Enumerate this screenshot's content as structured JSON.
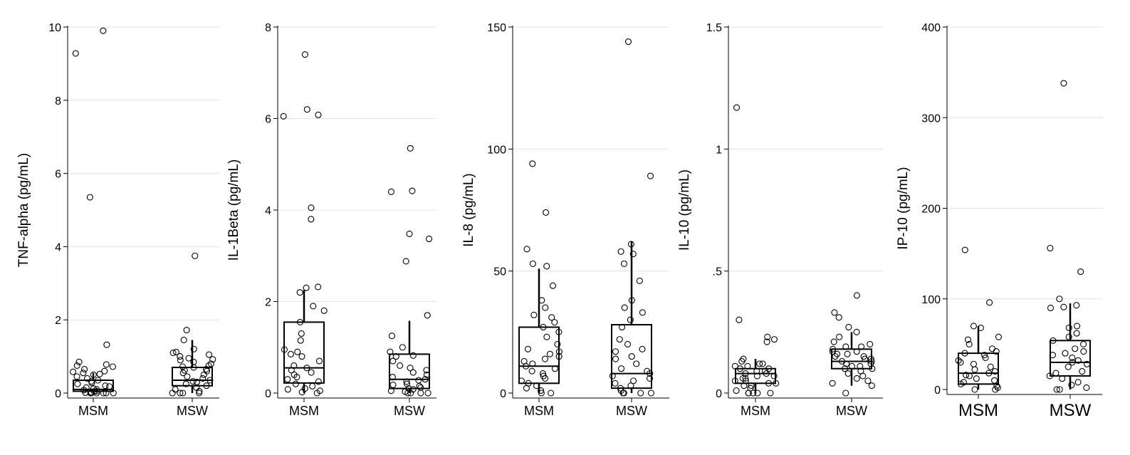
{
  "chart_data": [
    {
      "type": "box",
      "ylabel": "TNF-alpha (pg/mL)",
      "categories": [
        "MSM",
        "MSW"
      ],
      "ylim": [
        0,
        10
      ],
      "yticks": [
        0,
        2,
        4,
        6,
        8,
        10
      ],
      "ytick_labels": [
        "0",
        "2",
        "4",
        "6",
        "8",
        "10"
      ],
      "grid": true,
      "boxes": [
        {
          "whisker_low": 0,
          "q1": 0.05,
          "median": 0.1,
          "q3": 0.35,
          "whisker_high": 0.55
        },
        {
          "whisker_low": 0,
          "q1": 0.2,
          "median": 0.35,
          "q3": 0.7,
          "whisker_high": 1.45
        }
      ],
      "points": [
        [
          9.9,
          9.28,
          5.35,
          1.32,
          0.85,
          0.78,
          0.75,
          0.72,
          0.65,
          0.6,
          0.58,
          0.55,
          0.52,
          0.5,
          0.45,
          0.4,
          0.35,
          0.32,
          0.28,
          0.25,
          0.2,
          0.18,
          0.15,
          0.12,
          0.1,
          0.08,
          0.05,
          0.04,
          0.02,
          0.01,
          0,
          0,
          0,
          0,
          0,
          0
        ],
        [
          3.75,
          1.72,
          1.45,
          1.2,
          1.12,
          1.1,
          1.05,
          1.0,
          0.95,
          0.92,
          0.9,
          0.85,
          0.8,
          0.75,
          0.72,
          0.7,
          0.65,
          0.62,
          0.6,
          0.55,
          0.5,
          0.45,
          0.4,
          0.35,
          0.32,
          0.3,
          0.25,
          0.2,
          0.15,
          0.1,
          0.05,
          0,
          0,
          0,
          0
        ]
      ]
    },
    {
      "type": "box",
      "ylabel": "IL-1Beta (pg/mL)",
      "categories": [
        "MSM",
        "MSW"
      ],
      "ylim": [
        0,
        8
      ],
      "yticks": [
        0,
        2,
        4,
        6,
        8
      ],
      "ytick_labels": [
        "0",
        "2",
        "4",
        "6",
        "8"
      ],
      "grid": true,
      "boxes": [
        {
          "whisker_low": 0,
          "q1": 0.22,
          "median": 0.55,
          "q3": 1.55,
          "whisker_high": 2.25
        },
        {
          "whisker_low": 0,
          "q1": 0.1,
          "median": 0.3,
          "q3": 0.85,
          "whisker_high": 1.58
        }
      ],
      "points": [
        [
          7.4,
          6.2,
          6.08,
          6.05,
          4.05,
          3.8,
          2.32,
          2.3,
          2.2,
          1.9,
          1.8,
          1.55,
          1.3,
          1.15,
          0.95,
          0.9,
          0.85,
          0.8,
          0.7,
          0.6,
          0.55,
          0.5,
          0.45,
          0.4,
          0.35,
          0.3,
          0.25,
          0.2,
          0.15,
          0.1,
          0.08,
          0.05,
          0.02,
          0
        ],
        [
          5.35,
          4.42,
          4.4,
          3.48,
          3.37,
          2.88,
          1.7,
          1.25,
          1.0,
          0.9,
          0.82,
          0.8,
          0.7,
          0.6,
          0.55,
          0.5,
          0.45,
          0.4,
          0.35,
          0.3,
          0.28,
          0.25,
          0.2,
          0.18,
          0.15,
          0.12,
          0.1,
          0.08,
          0.05,
          0.03,
          0,
          0,
          0,
          0
        ]
      ]
    },
    {
      "type": "box",
      "ylabel": "IL-8 (pg/mL)",
      "categories": [
        "MSM",
        "MSW"
      ],
      "ylim": [
        0,
        150
      ],
      "yticks": [
        0,
        50,
        100,
        150
      ],
      "ytick_labels": [
        "0",
        "50",
        "100",
        "150"
      ],
      "grid": true,
      "boxes": [
        {
          "whisker_low": 0,
          "q1": 4,
          "median": 11,
          "q3": 27,
          "whisker_high": 51
        },
        {
          "whisker_low": 0,
          "q1": 2,
          "median": 8,
          "q3": 28,
          "whisker_high": 62
        }
      ],
      "points": [
        [
          94,
          74,
          59,
          53,
          52,
          44,
          38,
          35,
          32,
          31,
          29,
          27,
          25,
          23,
          20,
          18,
          17,
          16,
          15,
          14,
          13,
          12,
          11,
          10,
          9,
          8,
          7,
          6,
          5,
          4,
          3,
          2,
          1,
          0,
          0
        ],
        [
          144,
          89,
          61,
          58,
          57,
          53,
          46,
          38,
          35,
          33,
          30,
          27,
          22,
          20,
          18,
          17,
          15,
          14,
          12,
          10,
          9,
          8,
          7,
          6,
          5,
          4,
          3,
          2,
          1,
          0,
          0,
          0,
          0
        ]
      ]
    },
    {
      "type": "box",
      "ylabel": "IL-10 (pg/mL)",
      "categories": [
        "MSM",
        "MSW"
      ],
      "ylim": [
        0,
        1.5
      ],
      "yticks": [
        0,
        0.5,
        1,
        1.5
      ],
      "ytick_labels": [
        "0",
        ".5",
        "1",
        "1.5"
      ],
      "grid": true,
      "boxes": [
        {
          "whisker_low": 0,
          "q1": 0.04,
          "median": 0.08,
          "q3": 0.1,
          "whisker_high": 0.14
        },
        {
          "whisker_low": 0.03,
          "q1": 0.1,
          "median": 0.13,
          "q3": 0.18,
          "whisker_high": 0.25
        }
      ],
      "points": [
        [
          1.17,
          0.3,
          0.23,
          0.22,
          0.21,
          0.14,
          0.13,
          0.12,
          0.12,
          0.11,
          0.11,
          0.1,
          0.1,
          0.09,
          0.09,
          0.08,
          0.08,
          0.07,
          0.07,
          0.06,
          0.06,
          0.05,
          0.05,
          0.04,
          0.04,
          0.03,
          0.03,
          0.02,
          0.01,
          0,
          0,
          0,
          0,
          0
        ],
        [
          0.4,
          0.33,
          0.31,
          0.27,
          0.25,
          0.23,
          0.21,
          0.2,
          0.19,
          0.19,
          0.18,
          0.17,
          0.17,
          0.16,
          0.16,
          0.15,
          0.15,
          0.14,
          0.14,
          0.13,
          0.13,
          0.12,
          0.12,
          0.11,
          0.11,
          0.1,
          0.1,
          0.09,
          0.08,
          0.07,
          0.06,
          0.05,
          0.04,
          0.03,
          0
        ]
      ]
    },
    {
      "type": "box",
      "ylabel": "IP-10 (pg/mL)",
      "categories": [
        "MSM",
        "MSW"
      ],
      "ylim": [
        0,
        400
      ],
      "yticks": [
        0,
        100,
        200,
        300,
        400
      ],
      "ytick_labels": [
        "0",
        "100",
        "200",
        "300",
        "400"
      ],
      "grid": true,
      "boxes": [
        {
          "whisker_low": 0,
          "q1": 6,
          "median": 18,
          "q3": 40,
          "whisker_high": 70
        },
        {
          "whisker_low": 0,
          "q1": 15,
          "median": 30,
          "q3": 54,
          "whisker_high": 95
        }
      ],
      "points": [
        [
          154,
          96,
          70,
          68,
          58,
          55,
          50,
          45,
          42,
          40,
          38,
          35,
          32,
          30,
          28,
          25,
          22,
          20,
          18,
          16,
          15,
          12,
          10,
          8,
          6,
          4,
          2,
          0,
          0
        ],
        [
          338,
          156,
          130,
          100,
          93,
          91,
          90,
          70,
          68,
          62,
          58,
          54,
          50,
          45,
          42,
          40,
          38,
          35,
          32,
          30,
          28,
          25,
          20,
          18,
          15,
          12,
          8,
          5,
          2,
          0,
          0
        ]
      ]
    }
  ]
}
